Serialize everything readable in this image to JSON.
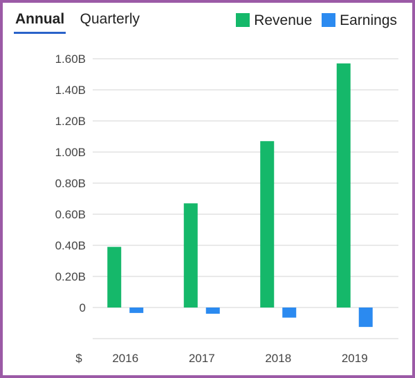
{
  "tabs": [
    {
      "label": "Annual",
      "active": true
    },
    {
      "label": "Quarterly",
      "active": false
    }
  ],
  "legend": [
    {
      "label": "Revenue",
      "color": "#15b86a"
    },
    {
      "label": "Earnings",
      "color": "#2b8af0"
    }
  ],
  "chart_data": {
    "type": "bar",
    "categories": [
      "2016",
      "2017",
      "2018",
      "2019"
    ],
    "series": [
      {
        "name": "Revenue",
        "values": [
          0.39,
          0.67,
          1.07,
          1.57
        ],
        "color": "#15b86a"
      },
      {
        "name": "Earnings",
        "values": [
          -0.035,
          -0.04,
          -0.065,
          -0.125
        ],
        "color": "#2b8af0"
      }
    ],
    "y_tick_labels": [
      "0",
      "0.20B",
      "0.40B",
      "0.60B",
      "0.80B",
      "1.00B",
      "1.20B",
      "1.40B",
      "1.60B"
    ],
    "y_tick_values": [
      0,
      0.2,
      0.4,
      0.6,
      0.8,
      1.0,
      1.2,
      1.4,
      1.6
    ],
    "ylim": [
      -0.2,
      1.6
    ],
    "ylabel": "$",
    "grid": true,
    "legend_position": "top-right"
  }
}
